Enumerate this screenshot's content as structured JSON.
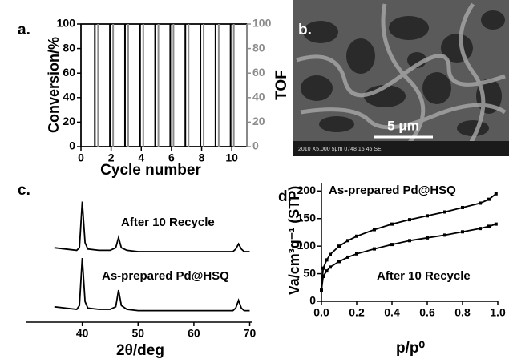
{
  "chart_data": [
    {
      "type": "bar",
      "label": "a.",
      "x_label": "Cycle number",
      "y_label": "Conversion/%",
      "y2_label": "TOF",
      "categories": [
        1,
        2,
        3,
        4,
        5,
        6,
        7,
        8,
        9,
        10
      ],
      "series": [
        {
          "name": "Conversion/%",
          "color": "#000000",
          "values": [
            100,
            100,
            100,
            100,
            100,
            100,
            100,
            100,
            100,
            100
          ]
        },
        {
          "name": "TOF",
          "color": "#8c8c8c",
          "axis": "y2",
          "values": [
            100,
            100,
            100,
            100,
            100,
            100,
            100,
            100,
            100,
            100
          ]
        }
      ],
      "xlim": [
        0,
        11
      ],
      "xticks": [
        0,
        2,
        4,
        6,
        8,
        10
      ],
      "ylim": [
        0,
        100
      ],
      "yticks": [
        0,
        20,
        40,
        60,
        80,
        100
      ],
      "y2lim": [
        0,
        100
      ],
      "y2ticks": [
        0,
        20,
        40,
        60,
        80,
        100
      ],
      "y2_color": "#8c8c8c"
    },
    {
      "type": "image",
      "label": "b.",
      "scale_label": "5 μm",
      "caption": "2010   X5,000   5μm   0748 15 45 SEI"
    },
    {
      "type": "line",
      "label": "c.",
      "x_label": "2θ/deg",
      "markers": false,
      "y_axis": false,
      "x": [
        35,
        37,
        39,
        39.5,
        40,
        40.5,
        41,
        43,
        45,
        46,
        46.5,
        47,
        48,
        50,
        55,
        60,
        65,
        67,
        67.5,
        68,
        68.5,
        69,
        70
      ],
      "series": [
        {
          "name": "After 10 Recycle",
          "color": "#000000",
          "values": [
            58,
            57,
            56,
            58,
            94,
            62,
            57,
            56,
            56,
            58,
            66,
            58,
            56,
            55,
            55,
            55,
            55,
            55,
            57,
            61,
            57,
            55,
            55
          ]
        },
        {
          "name": "As-prepared Pd@HSQ",
          "color": "#000000",
          "values": [
            12,
            11,
            10,
            13,
            50,
            16,
            11,
            10,
            10,
            12,
            25,
            13,
            10,
            9,
            9,
            9,
            9,
            9,
            11,
            17,
            11,
            9,
            9
          ]
        }
      ],
      "xlim": [
        30,
        70.5
      ],
      "xticks": [
        40,
        50,
        60,
        70
      ],
      "ylim": [
        0,
        100
      ]
    },
    {
      "type": "line",
      "label": "d.",
      "x_label": "p/p⁰",
      "y_label": "Va/cm³g⁻¹ (STP)",
      "markers": true,
      "y_axis": true,
      "x": [
        0,
        0.01,
        0.03,
        0.05,
        0.1,
        0.15,
        0.2,
        0.3,
        0.4,
        0.5,
        0.6,
        0.7,
        0.8,
        0.9,
        0.95,
        0.99
      ],
      "series": [
        {
          "name": "As-prepared Pd@HSQ",
          "color": "#000000",
          "values": [
            20,
            60,
            75,
            85,
            100,
            110,
            118,
            130,
            140,
            148,
            155,
            162,
            170,
            178,
            185,
            195
          ]
        },
        {
          "name": "After 10 Recycle",
          "color": "#000000",
          "values": [
            20,
            45,
            55,
            62,
            72,
            80,
            86,
            95,
            103,
            110,
            115,
            120,
            126,
            132,
            136,
            140
          ]
        }
      ],
      "xlim": [
        0,
        1
      ],
      "xticks": [
        {
          "value": 0,
          "label": "0.0"
        },
        {
          "value": 0.2,
          "label": "0.2"
        },
        {
          "value": 0.4,
          "label": "0.4"
        },
        {
          "value": 0.6,
          "label": "0.6"
        },
        {
          "value": 0.8,
          "label": "0.8"
        },
        {
          "value": 1,
          "label": "1.0"
        }
      ],
      "ylim": [
        0,
        215
      ],
      "yticks": [
        0,
        50,
        100,
        150,
        200
      ]
    }
  ]
}
